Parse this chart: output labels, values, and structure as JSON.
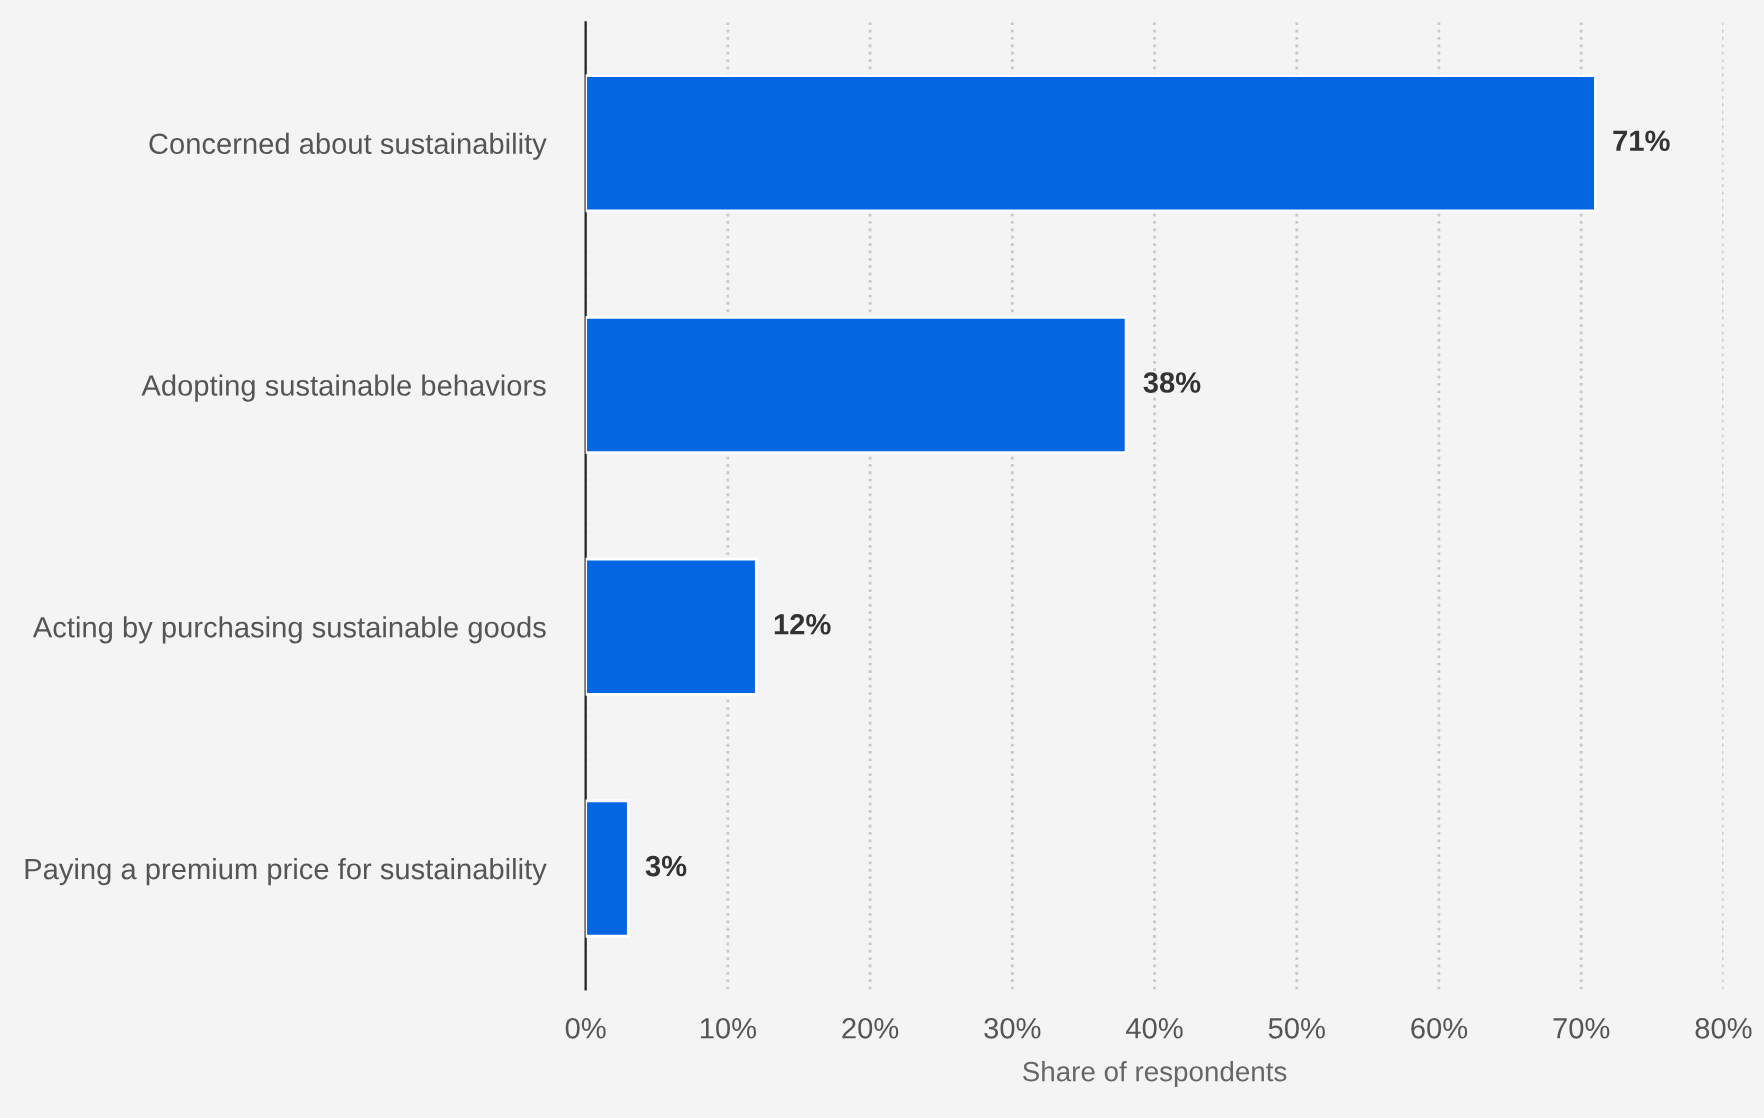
{
  "chart_data": {
    "type": "bar",
    "orientation": "horizontal",
    "xlabel": "Share of respondents",
    "categories": [
      "Concerned about sustainability",
      "Adopting sustainable behaviors",
      "Acting by purchasing sustainable goods",
      "Paying a premium price for sustainability"
    ],
    "values": [
      71,
      38,
      12,
      3
    ],
    "color": "#0566e3",
    "value_labels": [
      "71%",
      "38%",
      "12%",
      "3%"
    ],
    "xlim": [
      0,
      80
    ],
    "xticks": [
      {
        "value": 0,
        "label": "0%"
      },
      {
        "value": 10,
        "label": "10%"
      },
      {
        "value": 20,
        "label": "20%"
      },
      {
        "value": 30,
        "label": "30%"
      },
      {
        "value": 40,
        "label": "40%"
      },
      {
        "value": 50,
        "label": "50%"
      },
      {
        "value": 60,
        "label": "60%"
      },
      {
        "value": 70,
        "label": "70%"
      },
      {
        "value": 80,
        "label": "80%"
      }
    ],
    "grid": "x",
    "legend": false
  }
}
